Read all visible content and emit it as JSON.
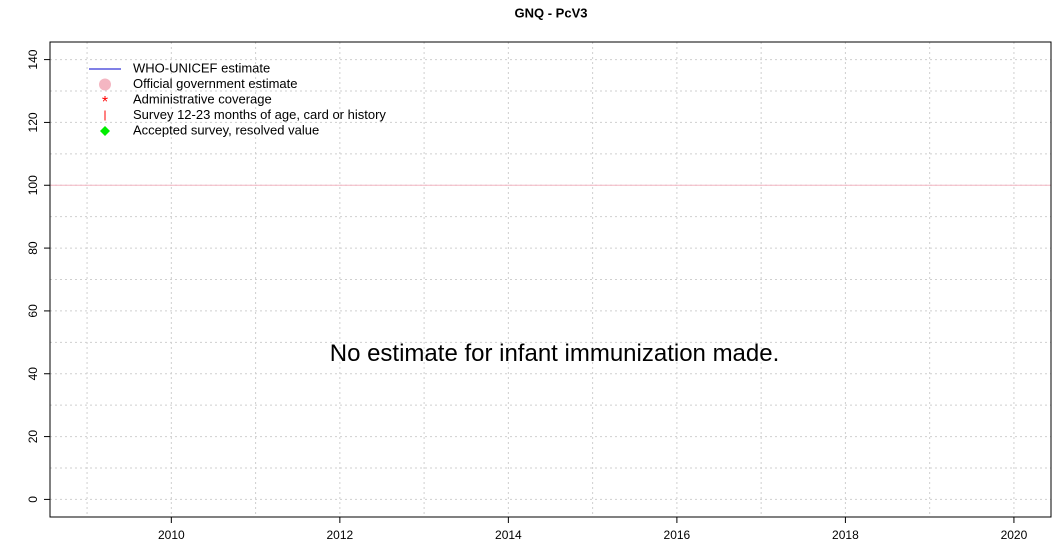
{
  "chart_data": {
    "type": "line",
    "title": "GNQ  -  PcV3",
    "annotation": "No estimate for infant immunization made.",
    "x": [],
    "series": [
      {
        "name": "WHO-UNICEF estimate",
        "color": "#0000cc",
        "marker": "line",
        "values": []
      },
      {
        "name": "Official government estimate",
        "color": "#f4b6c2",
        "marker": "dot",
        "values": []
      },
      {
        "name": "Administrative coverage",
        "color": "#ff0000",
        "marker": "star",
        "values": []
      },
      {
        "name": "Survey 12-23 months of age, card or history",
        "color": "#ff0000",
        "marker": "bar",
        "values": []
      },
      {
        "name": "Accepted survey, resolved value",
        "color": "#00ee00",
        "marker": "diamond",
        "values": []
      }
    ],
    "xlim": [
      2008.56,
      2020.44
    ],
    "xticks": [
      2010,
      2012,
      2014,
      2016,
      2018,
      2020
    ],
    "x_grid": [
      2009,
      2010,
      2011,
      2012,
      2013,
      2014,
      2015,
      2016,
      2017,
      2018,
      2019,
      2020
    ],
    "ylim": [
      -5.6,
      145.6
    ],
    "yticks": [
      0,
      20,
      40,
      60,
      80,
      100,
      120,
      140
    ],
    "y_grid": [
      0,
      10,
      20,
      30,
      40,
      50,
      60,
      70,
      80,
      90,
      100,
      110,
      120,
      130,
      140
    ],
    "reference_line": {
      "value": 100,
      "color": "#f4b6c2"
    },
    "grid": true,
    "legend": "top-left"
  }
}
